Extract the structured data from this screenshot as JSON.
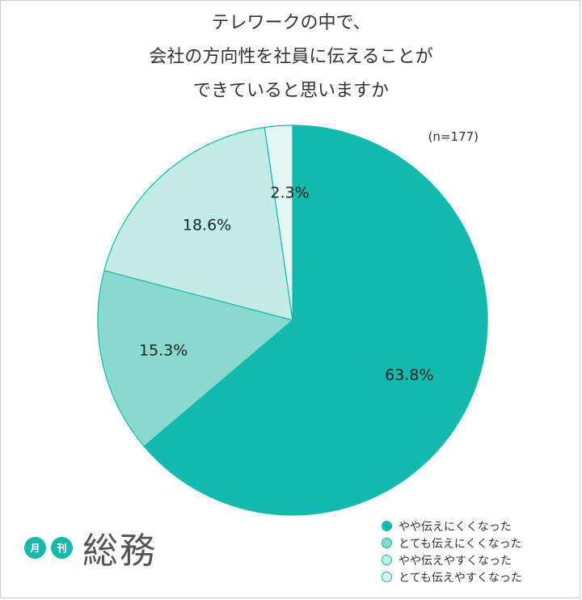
{
  "chart_data": {
    "type": "pie",
    "title_lines": [
      "テレワークの中で、",
      "会社の方向性を社員に伝えることが",
      "できていると思いますか"
    ],
    "sample_size": "(n=177)",
    "categories": [
      "やや伝えにくくなった",
      "とても伝えにくくなった",
      "やや伝えやすくなった",
      "とても伝えやすくなった"
    ],
    "values": [
      63.8,
      15.3,
      18.6,
      2.3
    ],
    "value_labels": [
      "63.8%",
      "15.3%",
      "18.6%",
      "2.3%"
    ],
    "colors": [
      "#13b9ad",
      "#89d9cf",
      "#c3ece6",
      "#e4f6f3"
    ],
    "legend": {
      "placement": "bottom-right"
    }
  },
  "logo": {
    "badge1": "月",
    "badge2": "刊",
    "text": "総務"
  }
}
